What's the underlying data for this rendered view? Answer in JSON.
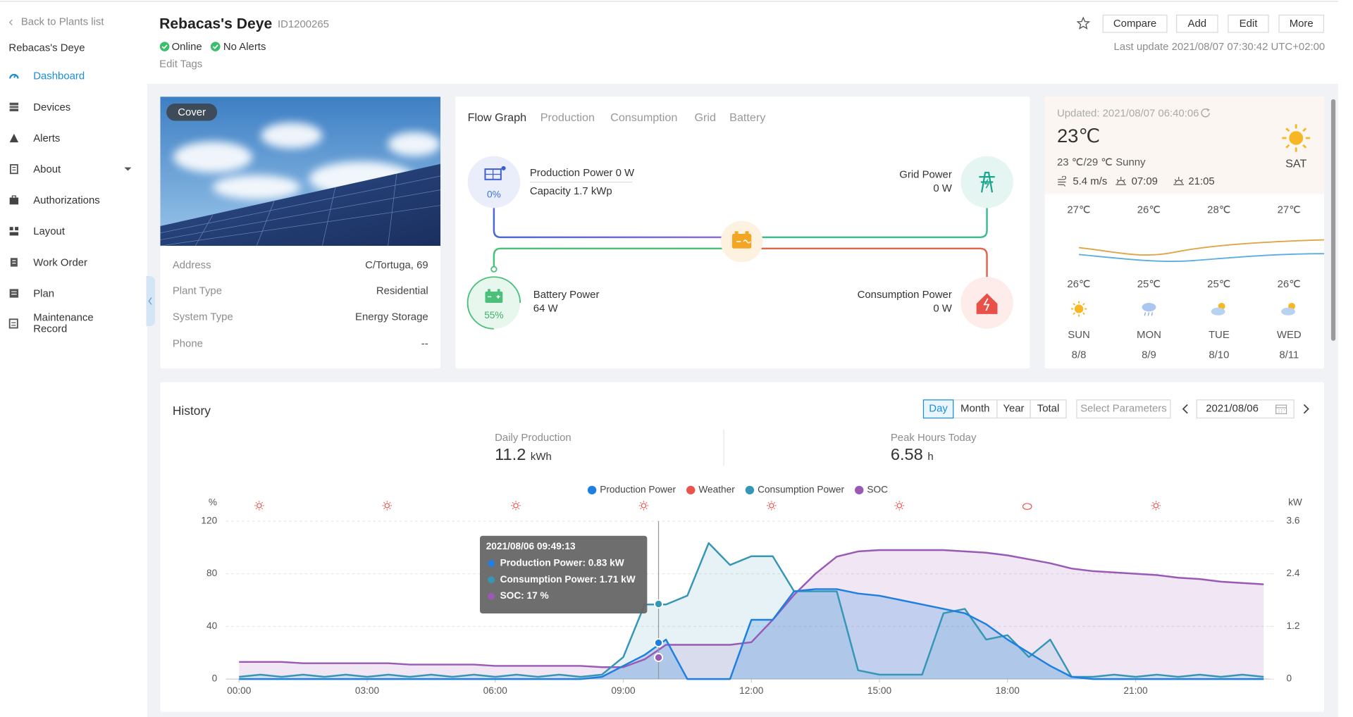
{
  "sidebar": {
    "back": "Back to Plants list",
    "plant": "Rebacas's Deye",
    "menu": [
      "Dashboard",
      "Devices",
      "Alerts",
      "About",
      "Authorizations",
      "Layout",
      "Work Order",
      "Plan",
      "Maintenance Record"
    ]
  },
  "header": {
    "title": "Rebacas's Deye",
    "plant_id": "ID1200265",
    "status": [
      "Online",
      "No Alerts"
    ],
    "edit_tags": "Edit Tags",
    "buttons": [
      "Compare",
      "Add",
      "Edit",
      "More"
    ],
    "last_update": "Last update 2021/08/07 07:30:42 UTC+02:00"
  },
  "cover": {
    "badge": "Cover",
    "details": [
      {
        "label": "Address",
        "value": "C/Tortuga, 69"
      },
      {
        "label": "Plant Type",
        "value": "Residential"
      },
      {
        "label": "System Type",
        "value": "Energy Storage"
      },
      {
        "label": "Phone",
        "value": "--"
      }
    ]
  },
  "flow": {
    "tabs": [
      "Flow Graph",
      "Production",
      "Consumption",
      "Grid",
      "Battery"
    ],
    "production": {
      "power": "Production Power 0 W",
      "capacity": "Capacity 1.7 kWp",
      "percent": "0%"
    },
    "grid": {
      "label": "Grid Power",
      "value": "0 W"
    },
    "battery": {
      "label": "Battery Power",
      "value": "64 W",
      "percent": "55%"
    },
    "consumption": {
      "label": "Consumption Power",
      "value": "0 W"
    }
  },
  "weather": {
    "updated": "Updated: 2021/08/07 06:40:06",
    "temperature": "23℃",
    "summary": "23 ℃/29 ℃ Sunny",
    "wind": "5.4 m/s",
    "sunrise": "07:09",
    "sunset": "21:05",
    "day": "SAT",
    "forecast": [
      {
        "high": "27℃",
        "low": "26℃",
        "day": "SUN",
        "date": "8/8"
      },
      {
        "high": "26℃",
        "low": "25℃",
        "day": "MON",
        "date": "8/9"
      },
      {
        "high": "28℃",
        "low": "25℃",
        "day": "TUE",
        "date": "8/10"
      },
      {
        "high": "27℃",
        "low": "26℃",
        "day": "WED",
        "date": "8/11"
      }
    ]
  },
  "history": {
    "title": "History",
    "ranges": [
      "Day",
      "Month",
      "Year",
      "Total"
    ],
    "parameters": "Select Parameters",
    "date": "2021/08/06",
    "stats": [
      {
        "label": "Daily Production",
        "value": "11.2",
        "unit": "kWh"
      },
      {
        "label": "Peak Hours Today",
        "value": "6.58",
        "unit": "h"
      }
    ]
  },
  "chart_data": {
    "type": "line",
    "y_label": "%",
    "y2_label": "kW",
    "x": [
      0,
      0.5,
      1,
      1.5,
      2,
      2.5,
      3,
      3.5,
      4,
      4.5,
      5,
      5.5,
      6,
      6.5,
      7,
      7.5,
      8,
      8.5,
      9,
      9.5,
      10,
      10.5,
      11,
      11.5,
      12,
      12.5,
      13,
      13.5,
      14,
      14.5,
      15,
      15.5,
      16,
      16.5,
      17,
      17.5,
      18,
      18.5,
      19,
      19.5,
      20,
      20.5,
      21,
      21.5,
      22,
      22.5,
      23,
      23.5,
      24
    ],
    "xlim": [
      0,
      24
    ],
    "xticks": [
      {
        "value": 0,
        "label": "00:00"
      },
      {
        "value": 3,
        "label": "03:00"
      },
      {
        "value": 6,
        "label": "06:00"
      },
      {
        "value": 9,
        "label": "09:00"
      },
      {
        "value": 12,
        "label": "12:00"
      },
      {
        "value": 15,
        "label": "15:00"
      },
      {
        "value": 18,
        "label": "18:00"
      },
      {
        "value": 21,
        "label": "21:00"
      }
    ],
    "ylim": [
      0,
      120
    ],
    "yticks": [
      0,
      40,
      80,
      120
    ],
    "y2lim": [
      0,
      3.6
    ],
    "y2ticks": [
      0,
      1.2,
      2.4,
      3.6
    ],
    "grid": true,
    "legend": "top",
    "series": [
      {
        "name": "Production Power",
        "color": "#1e7fe0",
        "axis": "y2",
        "values": [
          0,
          0,
          0,
          0,
          0,
          0,
          0,
          0,
          0,
          0,
          0,
          0,
          0,
          0,
          0,
          0,
          0,
          0.05,
          0.3,
          0.55,
          0.9,
          0,
          0,
          0,
          1.35,
          1.35,
          2.0,
          2.05,
          2.05,
          1.95,
          1.9,
          1.8,
          1.7,
          1.6,
          1.5,
          1.25,
          0.9,
          0.6,
          0.3,
          0.05,
          0,
          0,
          0,
          0,
          0,
          0,
          0,
          0,
          0
        ]
      },
      {
        "name": "Weather",
        "color": "#e8554e"
      },
      {
        "name": "Consumption Power",
        "color": "#3597b5",
        "axis": "y2",
        "values": [
          0.05,
          0.1,
          0.05,
          0.1,
          0.05,
          0.1,
          0.05,
          0.1,
          0.05,
          0.1,
          0.05,
          0.1,
          0.05,
          0.1,
          0.05,
          0.1,
          0.05,
          0.1,
          0.5,
          1.7,
          1.7,
          1.9,
          3.1,
          2.6,
          2.8,
          2.8,
          2.0,
          2.0,
          2.0,
          0.2,
          0.1,
          0.1,
          0.1,
          1.5,
          1.6,
          0.9,
          1.0,
          0.5,
          0.9,
          0.05,
          0.05,
          0.1,
          0.05,
          0.1,
          0.05,
          0.1,
          0.05,
          0.1,
          0.05
        ]
      },
      {
        "name": "SOC",
        "color": "#9b59b6",
        "axis": "y",
        "values": [
          13,
          13,
          13,
          12,
          12,
          12,
          12,
          12,
          11,
          11,
          11,
          11,
          10,
          10,
          10,
          10,
          10,
          9,
          9,
          15,
          26,
          26,
          26,
          26,
          28,
          45,
          64,
          80,
          93,
          97,
          98,
          98,
          98,
          98,
          97,
          96,
          94,
          91,
          88,
          84,
          82,
          81,
          80,
          79,
          77,
          76,
          74,
          73,
          72
        ]
      }
    ],
    "tooltip": {
      "time": "2021/08/06 09:49:13",
      "items": [
        "Production Power:  0.83 kW",
        "Consumption Power:  1.71 kW",
        "SOC:  17 %"
      ]
    }
  }
}
